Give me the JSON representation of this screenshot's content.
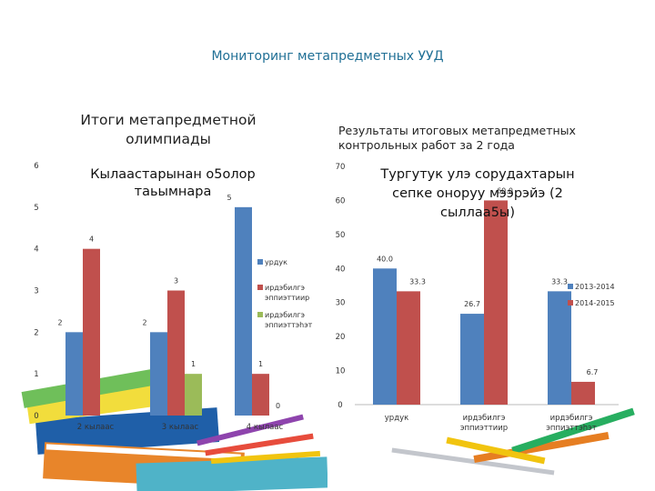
{
  "page": {
    "title": "Мониторинг метапредметных УУД"
  },
  "chart_data": [
    {
      "type": "bar",
      "title": "Итоги метапредметной олимпиады",
      "overlay_text": [
        "Кылаастарынан о5олор",
        "таьымнара"
      ],
      "categories": [
        "2 кылаас",
        "3 кылаас",
        "4 кылаас"
      ],
      "series": [
        {
          "name": "урдук",
          "color": "#4f81bd",
          "values": [
            2,
            2,
            5
          ]
        },
        {
          "name": "ирдэбилгэ эппиэттиир",
          "color": "#c0504d",
          "values": [
            4,
            3,
            1
          ]
        },
        {
          "name": "ирдэбилгэ эппиэттэһэт",
          "color": "#9bbb59",
          "values": [
            null,
            1,
            0
          ]
        }
      ],
      "ylim": [
        0,
        6
      ],
      "yticks": [
        0,
        1,
        2,
        3,
        4,
        5,
        6
      ],
      "legend": "right"
    },
    {
      "type": "bar",
      "title": "Результаты итоговых  метапредметных контрольных работ за 2 года",
      "overlay_text": [
        "Тургутук улэ сорудахтарын",
        "сепке оноруу мээрэйэ  (2",
        "сыллаа5ы)"
      ],
      "categories": [
        "урдук",
        "ирдэбилгэ эппиэттиир",
        "ирдэбилгэ эппиэттэһэт"
      ],
      "series": [
        {
          "name": "2013-2014",
          "color": "#4f81bd",
          "values": [
            40.0,
            26.7,
            33.3
          ]
        },
        {
          "name": "2014-2015",
          "color": "#c0504d",
          "values": [
            33.3,
            60.0,
            6.7
          ]
        }
      ],
      "ylim": [
        0,
        70
      ],
      "yticks": [
        0,
        10,
        20,
        30,
        40,
        50,
        60,
        70
      ],
      "legend": "right"
    }
  ]
}
